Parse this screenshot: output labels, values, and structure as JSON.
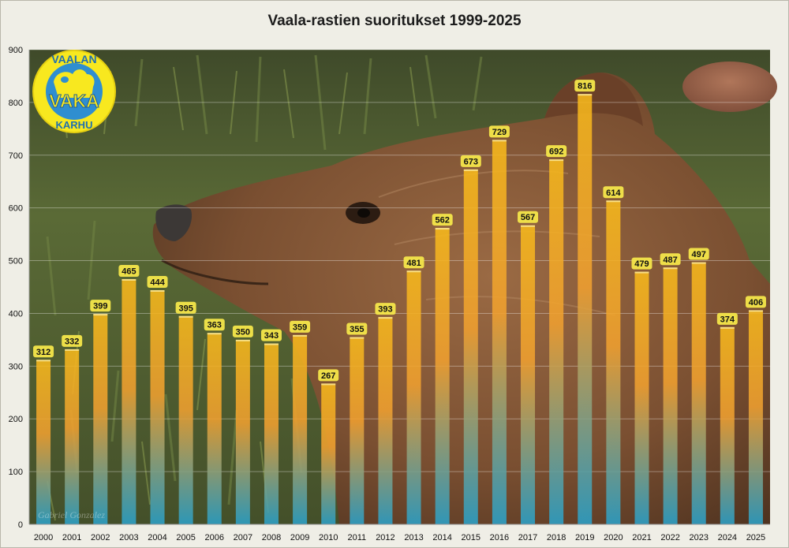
{
  "title": "Vaala-rastien  suoritukset 1999-2025",
  "colors": {
    "bar_top": "#f7b91b",
    "bar_mid": "#f0a030",
    "bar_bottom": "#2aa1c9",
    "label_bg": "#f4e64a",
    "logo_yellow": "#f8e81f",
    "logo_blue": "#2f8ed0",
    "background": "#efeee6"
  },
  "logo": {
    "top_text": "VAALAN",
    "center_text": "VAKA",
    "bottom_text": "KARHU"
  },
  "photo_credit": "Gabriel Gonzalez",
  "chart_data": {
    "type": "bar",
    "title": "Vaala-rastien  suoritukset 1999-2025",
    "categories": [
      "2000",
      "2001",
      "2002",
      "2003",
      "2004",
      "2005",
      "2006",
      "2007",
      "2008",
      "2009",
      "2010",
      "2011",
      "2012",
      "2013",
      "2014",
      "2015",
      "2016",
      "2017",
      "2018",
      "2019",
      "2020",
      "2021",
      "2022",
      "2023",
      "2024",
      "2025"
    ],
    "values": [
      312,
      332,
      399,
      465,
      444,
      395,
      363,
      350,
      343,
      359,
      267,
      355,
      393,
      481,
      562,
      673,
      729,
      567,
      692,
      816,
      614,
      479,
      487,
      497,
      374,
      406
    ],
    "yticks": [
      "0",
      "100",
      "200",
      "300",
      "400",
      "500",
      "600",
      "700",
      "800",
      "900"
    ],
    "ylim": [
      0,
      900
    ],
    "xlabel": "",
    "ylabel": "",
    "grid": true,
    "data_labels": true
  }
}
